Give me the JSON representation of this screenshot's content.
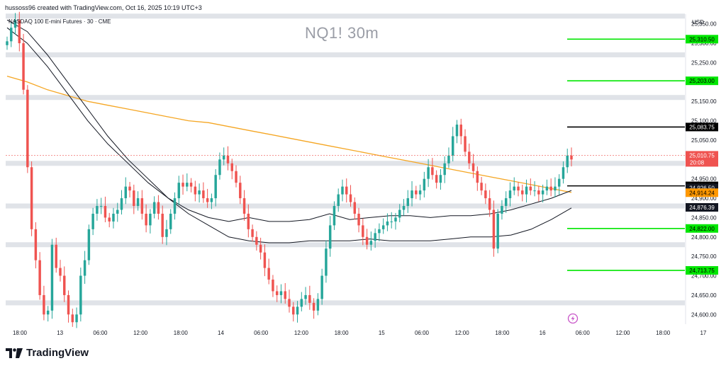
{
  "header": {
    "attribution": "hussoss96 created with TradingView.com, Oct 16, 2025 10:19 UTC+3",
    "symbol_description": "NASDAQ 100 E-mini Futures · 30 · CME",
    "watermark": "NQ1! 30m",
    "currency": "USD"
  },
  "branding": {
    "logo_text": "TradingView",
    "logo_icon": "tradingview-logo-icon"
  },
  "colors": {
    "up": "#26a69a",
    "down": "#ef5350",
    "ma_slow": "#f5a623",
    "ma_fast": "#131722",
    "zone": "#d6d9e0",
    "green_level": "#00e600",
    "black_level": "#000000",
    "last_price_bg": "#ef5350",
    "orange_label_bg": "#ff9800"
  },
  "chart_data": {
    "type": "candlestick",
    "symbol": "NQ1!",
    "timeframe": "30m",
    "ylim": [
      24580,
      25400
    ],
    "y_ticks": [
      "25,350.00",
      "25,300.00",
      "25,250.00",
      "25,200.00",
      "25,150.00",
      "25,100.00",
      "25,050.00",
      "25,000.00",
      "24,950.00",
      "24,900.00",
      "24,850.00",
      "24,800.00",
      "24,750.00",
      "24,700.00",
      "24,650.00",
      "24,600.00"
    ],
    "x_ticks": [
      "18:00",
      "13",
      "06:00",
      "12:00",
      "18:00",
      "14",
      "06:00",
      "12:00",
      "18:00",
      "15",
      "06:00",
      "12:00",
      "18:00",
      "16",
      "06:00",
      "12:00",
      "18:00",
      "17"
    ],
    "candles_close": [
      25305,
      25340,
      25360,
      25300,
      25180,
      24980,
      24820,
      24740,
      24650,
      24600,
      24610,
      24780,
      24720,
      24700,
      24650,
      24600,
      24580,
      24600,
      24700,
      24740,
      24820,
      24860,
      24880,
      24880,
      24850,
      24840,
      24860,
      24870,
      24900,
      24930,
      24920,
      24880,
      24900,
      24860,
      24830,
      24860,
      24890,
      24860,
      24800,
      24820,
      24860,
      24900,
      24940,
      24930,
      24940,
      24930,
      24910,
      24920,
      24900,
      24890,
      24900,
      24960,
      25000,
      25010,
      24990,
      24970,
      24940,
      24900,
      24860,
      24820,
      24800,
      24780,
      24760,
      24720,
      24690,
      24660,
      24650,
      24660,
      24640,
      24620,
      24600,
      24620,
      24640,
      24650,
      24630,
      24610,
      24640,
      24700,
      24770,
      24830,
      24880,
      24910,
      24930,
      24910,
      24890,
      24860,
      24830,
      24800,
      24780,
      24790,
      24810,
      24820,
      24830,
      24840,
      24840,
      24850,
      24870,
      24880,
      24900,
      24920,
      24910,
      24920,
      24950,
      24980,
      24960,
      24940,
      24960,
      24990,
      25010,
      25060,
      25090,
      25060,
      25020,
      24990,
      24970,
      24940,
      24920,
      24900,
      24870,
      24770,
      24860,
      24880,
      24900,
      24920,
      24930,
      24920,
      24910,
      24930,
      24920,
      24920,
      24910,
      24920,
      24930,
      24920,
      24930,
      24950,
      24980,
      25010,
      25000
    ],
    "levels": [
      {
        "price": 25310.5,
        "label": "25,310.50",
        "kind": "green"
      },
      {
        "price": 25203.0,
        "label": "25,203.00",
        "kind": "green"
      },
      {
        "price": 25083.75,
        "label": "25,083.75",
        "kind": "black"
      },
      {
        "price": 24931.87,
        "label": "24,931.87",
        "kind": "black"
      },
      {
        "price": 24822.0,
        "label": "24,822.00",
        "kind": "green"
      },
      {
        "price": 24713.75,
        "label": "24,713.75",
        "kind": "green"
      }
    ],
    "zones": [
      25370,
      25270,
      25160,
      24990,
      24880,
      24780,
      24630
    ],
    "price_labels": [
      {
        "text": "25,010.75",
        "kind": "last"
      },
      {
        "text": "20:08",
        "kind": "countdown"
      },
      {
        "text": "24,926.50",
        "kind": "dark"
      },
      {
        "text": "24,914.24",
        "kind": "orange"
      },
      {
        "text": "24,876.39",
        "kind": "dark"
      }
    ],
    "ma_slow_close": [
      25215,
      25200,
      25180,
      25165,
      25150,
      25140,
      25130,
      25120,
      25110,
      25100,
      25095,
      25085,
      25075,
      25065,
      25055,
      25045,
      25035,
      25025,
      25015,
      25005,
      24995,
      24985,
      24975,
      24965,
      24955,
      24945,
      24935,
      24925,
      24915
    ],
    "ma_fast_close": [
      25340,
      25300,
      25240,
      25170,
      25100,
      25040,
      24990,
      24940,
      24900,
      24870,
      24850,
      24840,
      24850,
      24840,
      24840,
      24845,
      24860,
      24845,
      24850,
      24855,
      24855,
      24850,
      24855,
      24855,
      24860,
      24870,
      24885,
      24900,
      24920
    ],
    "ma_mid_close": [
      25360,
      25330,
      25270,
      25200,
      25130,
      25060,
      25000,
      24950,
      24900,
      24860,
      24830,
      24800,
      24790,
      24785,
      24785,
      24790,
      24790,
      24790,
      24795,
      24790,
      24790,
      24790,
      24795,
      24800,
      24800,
      24805,
      24820,
      24845,
      24875
    ]
  }
}
